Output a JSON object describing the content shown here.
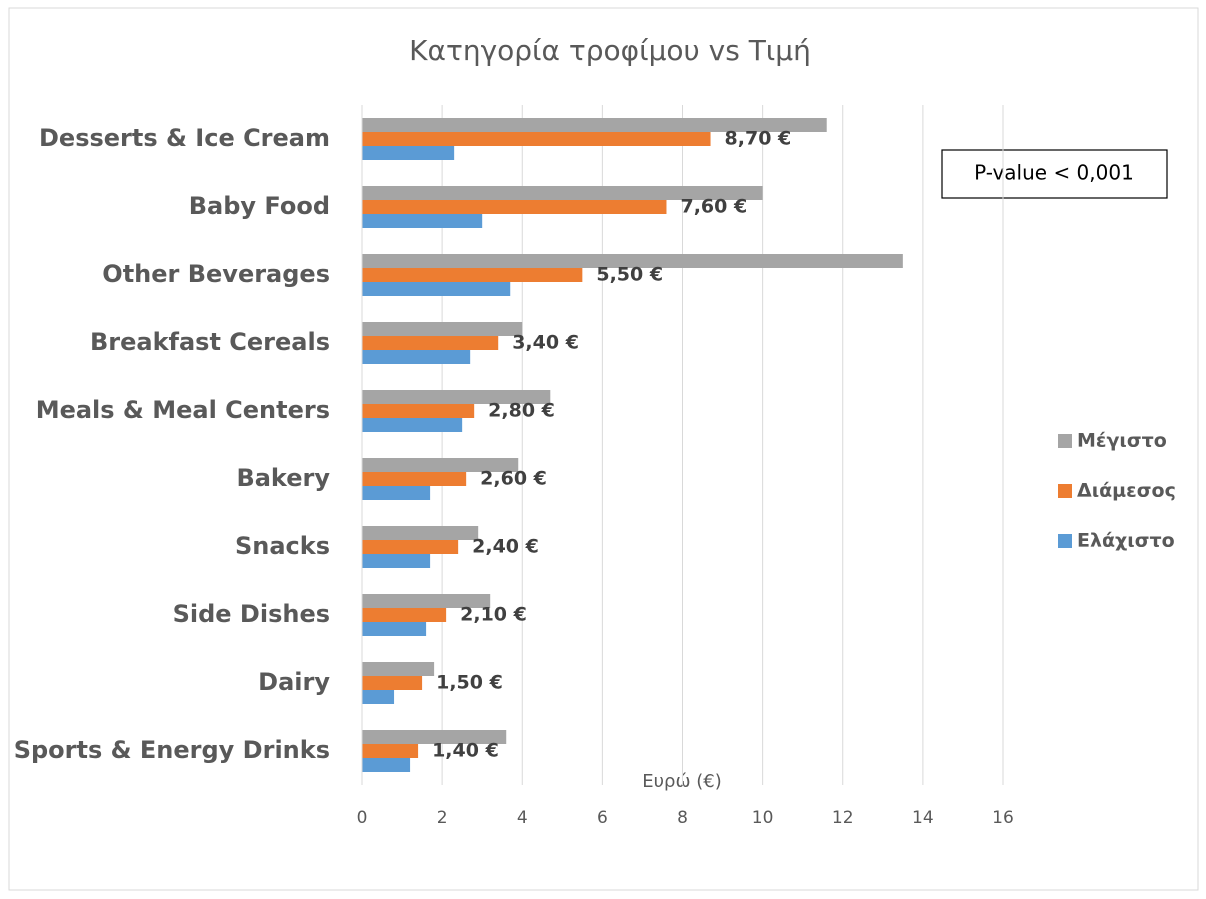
{
  "chart_data": {
    "type": "bar",
    "orientation": "horizontal",
    "title": "Κατηγορία τροφίμου vs Τιμή",
    "x_label": "Ευρώ (€)",
    "annotation": "P-value < 0,001",
    "categories": [
      "Desserts & Ice Cream",
      "Baby Food",
      "Other Beverages",
      "Breakfast Cereals",
      "Meals & Meal Centers",
      "Bakery",
      "Snacks",
      "Side Dishes",
      "Dairy",
      "Sports & Energy Drinks"
    ],
    "series": [
      {
        "name": "Μέγιστο",
        "color": "#a5a5a5",
        "values": [
          11.6,
          10.0,
          13.5,
          4.0,
          4.7,
          3.9,
          2.9,
          3.2,
          1.8,
          3.6
        ]
      },
      {
        "name": "Διάμεσος",
        "color": "#ed7d31",
        "values": [
          8.7,
          7.6,
          5.5,
          3.4,
          2.8,
          2.6,
          2.4,
          2.1,
          1.5,
          1.4
        ],
        "value_labels": [
          "8,70 €",
          "7,60 €",
          "5,50 €",
          "3,40 €",
          "2,80 €",
          "2,60 €",
          "2,40 €",
          "2,10 €",
          "1,50 €",
          "1,40 €"
        ]
      },
      {
        "name": "Ελάχιστο",
        "color": "#5b9bd5",
        "values": [
          2.3,
          3.0,
          3.7,
          2.7,
          2.5,
          1.7,
          1.7,
          1.6,
          0.8,
          1.2
        ]
      }
    ],
    "xlim": [
      0,
      16
    ],
    "xticks": [
      0,
      2,
      4,
      6,
      8,
      10,
      12,
      14,
      16
    ],
    "grid": true,
    "legend": "right"
  }
}
